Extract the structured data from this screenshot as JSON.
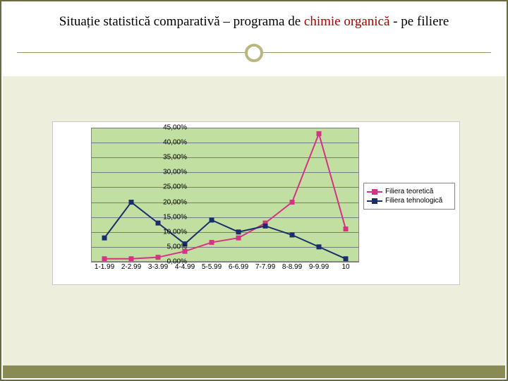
{
  "title": {
    "prefix": "Situație statistică comparativă – programa de ",
    "highlight": "chimie organică",
    "suffix": " - pe filiere"
  },
  "chart": {
    "type": "line",
    "plot_bg": "#c0dfa0",
    "grid_color": "#7a7a7a",
    "y": {
      "min": 0,
      "max": 45,
      "ticks": [
        0,
        5,
        10,
        15,
        20,
        25,
        30,
        35,
        40,
        45
      ],
      "labels": [
        "0,00%",
        "5,00%",
        "10,00%",
        "15,00%",
        "20,00%",
        "25,00%",
        "30,00%",
        "35,00%",
        "40,00%",
        "45,00%"
      ]
    },
    "x": {
      "labels": [
        "1-1.99",
        "2-2.99",
        "3-3.99",
        "4-4.99",
        "5-5.99",
        "6-6.99",
        "7-7.99",
        "8-8.99",
        "9-9.99",
        "10"
      ]
    },
    "series": [
      {
        "name": "Filiera teoretică",
        "color": "#d63384",
        "marker_fill": "#d63384",
        "line_width": 2,
        "marker": "square",
        "marker_size": 7,
        "values": [
          1.0,
          1.0,
          1.5,
          3.5,
          6.5,
          8.0,
          13.0,
          20.0,
          43.0,
          11.0
        ]
      },
      {
        "name": "Filiera tehnologică",
        "color": "#1a2e6b",
        "marker_fill": "#1a2e6b",
        "line_width": 2,
        "marker": "square",
        "marker_size": 7,
        "values": [
          8.0,
          20.0,
          13.0,
          6.0,
          14.0,
          10.0,
          12.0,
          9.0,
          5.0,
          1.0
        ]
      }
    ],
    "legend": {
      "position": "right"
    }
  },
  "colors": {
    "slide_border": "#6b6b40",
    "body_bg": "#eeeedd",
    "footer": "#8a8a55",
    "divider": "#9a9a6a",
    "circle": "#b8b87d"
  }
}
